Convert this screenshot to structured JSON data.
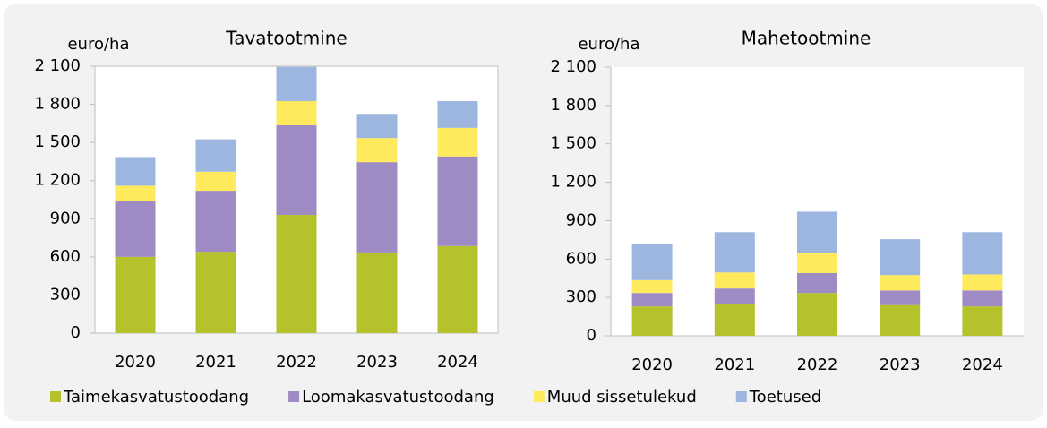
{
  "chart_data": [
    {
      "type": "bar",
      "stacked": true,
      "title": "Tavatootmine",
      "ylabel": "euro/ha",
      "categories": [
        "2020",
        "2021",
        "2022",
        "2023",
        "2024"
      ],
      "series": [
        {
          "name": "Taimekasvatustoodang",
          "color": "#b5c22b",
          "values": [
            600,
            640,
            930,
            635,
            685
          ]
        },
        {
          "name": "Loomakasvatustoodang",
          "color": "#9e8bc3",
          "values": [
            440,
            480,
            705,
            710,
            705
          ]
        },
        {
          "name": "Muud sissetulekud",
          "color": "#ffe95c",
          "values": [
            120,
            150,
            190,
            190,
            225
          ]
        },
        {
          "name": "Toetused",
          "color": "#9db6e0",
          "values": [
            225,
            255,
            270,
            190,
            210
          ]
        }
      ],
      "ylim": [
        0,
        2100
      ],
      "yticks": [
        0,
        300,
        600,
        900,
        {
          "value": 1200,
          "label": "1 200"
        },
        {
          "value": 1500,
          "label": "1 500"
        },
        {
          "value": 1800,
          "label": "1 800"
        },
        {
          "value": 2100,
          "label": "2 100"
        }
      ]
    },
    {
      "type": "bar",
      "stacked": true,
      "title": "Mahetootmine",
      "ylabel": "euro/ha",
      "categories": [
        "2020",
        "2021",
        "2022",
        "2023",
        "2024"
      ],
      "series": [
        {
          "color": "#b5c22b",
          "values": [
            230,
            250,
            335,
            240,
            230
          ]
        },
        {
          "color": "#9e8bc3",
          "values": [
            105,
            120,
            155,
            115,
            125
          ]
        },
        {
          "color": "#ffe95c",
          "values": [
            100,
            125,
            160,
            120,
            125
          ]
        },
        {
          "color": "#9db6e0",
          "values": [
            285,
            315,
            320,
            280,
            330
          ]
        }
      ],
      "ylim": [
        0,
        2100
      ],
      "yticks": [
        0,
        300,
        600,
        900,
        {
          "value": 1200,
          "label": "1 200"
        },
        {
          "value": 1500,
          "label": "1 500"
        },
        {
          "value": 1800,
          "label": "1 800"
        },
        {
          "value": 2100,
          "label": "2 100"
        }
      ]
    }
  ]
}
